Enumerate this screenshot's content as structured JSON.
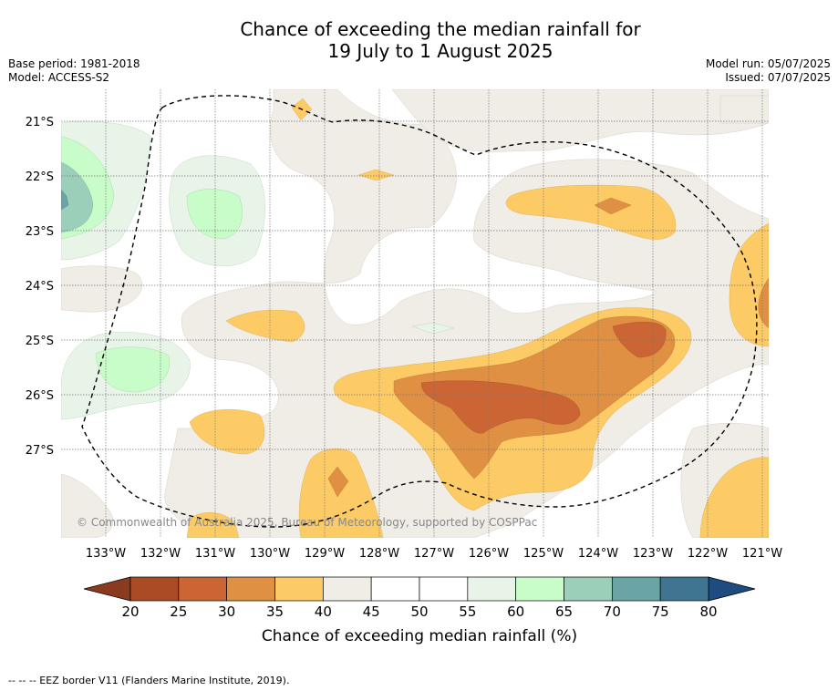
{
  "title": {
    "line1": "Chance of exceeding the median rainfall for",
    "line2": "19 July to 1 August 2025"
  },
  "meta": {
    "base_period": "Base period: 1981-2018",
    "model": "Model: ACCESS-S2",
    "model_run": "Model run: 05/07/2025",
    "issued": "Issued: 07/07/2025"
  },
  "map": {
    "lat_labels": [
      "21°S",
      "22°S",
      "23°S",
      "24°S",
      "25°S",
      "26°S",
      "27°S"
    ],
    "lon_labels": [
      "133°W",
      "132°W",
      "131°W",
      "130°W",
      "129°W",
      "128°W",
      "127°W",
      "126°W",
      "125°W",
      "124°W",
      "123°W",
      "122°W",
      "121°W"
    ],
    "copyright": "© Commonwealth of Australia 2025, Bureau of Meteorology, supported by COSPPac",
    "eez_border": "dashed"
  },
  "colorbar": {
    "ticks": [
      "20",
      "25",
      "30",
      "35",
      "40",
      "45",
      "50",
      "55",
      "60",
      "65",
      "70",
      "75",
      "80"
    ],
    "colors": [
      "#aa4b25",
      "#cc6534",
      "#df9042",
      "#fdcb65",
      "#f0ece6",
      "#ffffff",
      "#ffffff",
      "#e9f4e8",
      "#c8fcc9",
      "#9bcfba",
      "#6aa4a4",
      "#3f7591"
    ],
    "under_color": "#8a3a1f",
    "over_color": "#1e4b80",
    "label": "Chance of exceeding median rainfall (%)"
  },
  "footnote": "--  --  -- EEZ border V11 (Flanders Marine Institute, 2019)."
}
